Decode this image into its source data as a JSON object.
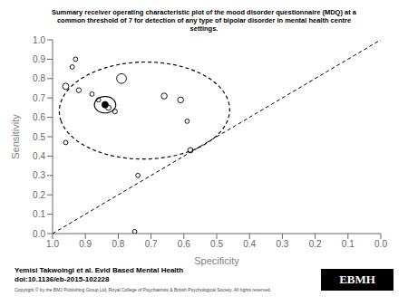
{
  "chart_data": {
    "type": "scatter",
    "title": "Summary receiver operating characteristic plot of the mood disorder questionnaire (MDQ) at a\ncommon threshold of 7 for detection of any type of bipolar disorder in mental health centre\nsettings.",
    "xlabel": "Specificity",
    "ylabel": "Sensitivity",
    "xlim": [
      1.0,
      0.0
    ],
    "ylim": [
      0.0,
      1.0
    ],
    "xticks": [
      {
        "value": 1.0,
        "label": "1.0"
      },
      0.9,
      0.8,
      0.7,
      0.6,
      0.5,
      0.4,
      0.3,
      0.2,
      0.1,
      {
        "value": 0.0,
        "label": "0.0"
      }
    ],
    "yticks": [
      {
        "value": 0.0,
        "label": "0.0"
      },
      0.1,
      0.2,
      0.3,
      0.4,
      0.5,
      0.6,
      0.7,
      0.8,
      0.9,
      {
        "value": 1.0,
        "label": "1.0"
      }
    ],
    "grid": false,
    "series": [
      {
        "type": "line",
        "x": [
          1.0,
          0.0
        ],
        "values": [
          0.0,
          1.0
        ],
        "color": "#000000",
        "line_style": "dashed"
      },
      {
        "type": "ellipse",
        "center": [
          0.72,
          0.635
        ],
        "width": 0.52,
        "height": 0.5,
        "angle": -12,
        "color": "#000000",
        "line_style": "dashed"
      },
      {
        "type": "ellipse",
        "center": [
          0.84,
          0.665
        ],
        "width": 0.065,
        "height": 0.085,
        "angle": 0,
        "color": "#000000",
        "line_style": "solid"
      },
      {
        "type": "scatter",
        "x": [
          0.93,
          0.96,
          0.92,
          0.88,
          0.86,
          0.84,
          0.83,
          0.81,
          0.79,
          0.66,
          0.61,
          0.59,
          0.96,
          0.74,
          0.58,
          0.75,
          0.94
        ],
        "values": [
          0.9,
          0.76,
          0.74,
          0.72,
          0.69,
          0.67,
          0.65,
          0.63,
          0.8,
          0.71,
          0.69,
          0.58,
          0.47,
          0.3,
          0.43,
          0.01,
          0.86
        ],
        "size": [
          12,
          25,
          15,
          12,
          12,
          12,
          18,
          14,
          60,
          22,
          22,
          12,
          12,
          12,
          18,
          12,
          12
        ],
        "color": "#000000",
        "marker": "open circle"
      },
      {
        "type": "scatter",
        "x": [
          0.84
        ],
        "values": [
          0.665
        ],
        "size": [
          25
        ],
        "color": "#000000",
        "marker": "filled circle"
      }
    ],
    "annotations": [
      "Yemisi Takwoingi et al. Evid Based Mental Health\ndoi:10.1136/eb-2015-102228",
      "Copyright © by the BMJ Publishing Group Ltd, Royal College of Psychiatrists & British Psychological Society.  All rights reserved.",
      "EBMH"
    ]
  }
}
